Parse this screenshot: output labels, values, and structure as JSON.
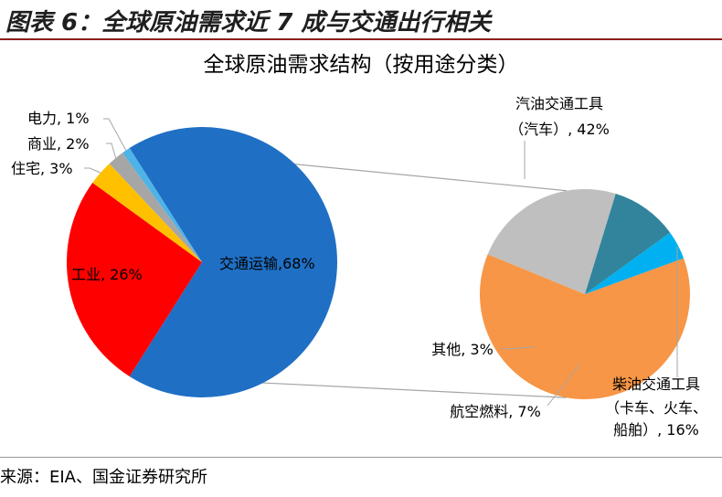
{
  "figure": {
    "title": "图表 6：全球原油需求近 7 成与交通出行相关",
    "source": "来源：EIA、国金证券研究所"
  },
  "chart_data": [
    {
      "type": "pie",
      "title": "全球原油需求结构（按用途分类）",
      "slices": [
        {
          "name": "交通运输",
          "value": 68,
          "label": "交通运输,68%",
          "color": "#1f6fc5"
        },
        {
          "name": "工业",
          "value": 26,
          "label": "工业, 26%",
          "color": "#ff0000"
        },
        {
          "name": "住宅",
          "value": 3,
          "label": "住宅, 3%",
          "color": "#ffc000"
        },
        {
          "name": "商业",
          "value": 2,
          "label": "商业, 2%",
          "color": "#a6a6a6"
        },
        {
          "name": "电力",
          "value": 1,
          "label": "电力, 1%",
          "color": "#4eb3e6"
        }
      ]
    },
    {
      "type": "pie",
      "title": "",
      "slices": [
        {
          "name": "汽油交通工具（汽车）",
          "value": 42,
          "label_lines": [
            "汽油交通工具",
            "（汽车）, 42%"
          ],
          "color": "#f79646"
        },
        {
          "name": "柴油交通工具（卡车、火车、船舶）",
          "value": 16,
          "label_lines": [
            "柴油交通工具",
            "（卡车、火车、",
            "船舶）, 16%"
          ],
          "color": "#bfbfbf"
        },
        {
          "name": "航空燃料",
          "value": 7,
          "label_lines": [
            "航空燃料, 7%"
          ],
          "color": "#31849b"
        },
        {
          "name": "其他",
          "value": 3,
          "label_lines": [
            "其他, 3%"
          ],
          "color": "#00b0f0"
        }
      ]
    }
  ]
}
